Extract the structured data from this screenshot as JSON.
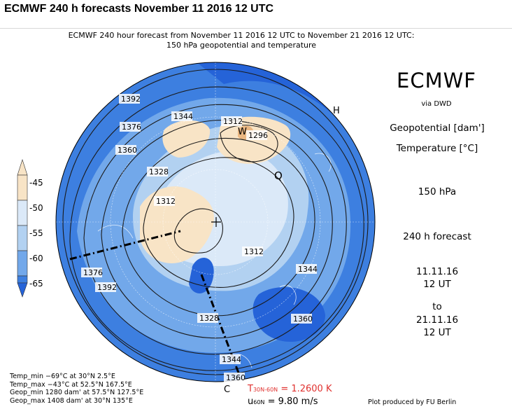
{
  "page": {
    "title": "ECMWF 240 h forecasts November 11 2016 12 UTC"
  },
  "map": {
    "title_line1": "ECMWF 240 hour forecast from November 11 2016 12 UTC to November 21 2016 12 UTC:",
    "title_line2": "150 hPa geopotential and temperature",
    "contour_labels": [
      "1392",
      "1376",
      "1360",
      "1344",
      "1328",
      "1312",
      "1296",
      "1312",
      "1312",
      "1376",
      "1392",
      "1344",
      "1360",
      "1328",
      "1344",
      "1360"
    ],
    "markers": {
      "warm": "W",
      "cold": "C",
      "high": "H"
    }
  },
  "right_panel": {
    "brand": "ECMWF",
    "via": "via DWD",
    "geopotential": "Geopotential [dam']",
    "temperature": "Temperature [°C]",
    "level": "150 hPa",
    "forecast": "240 h forecast",
    "from_date": "11.11.16",
    "from_time": "12 UT",
    "to": "to",
    "to_date": "21.11.16",
    "to_time": "12 UT"
  },
  "colorbar": {
    "ticks": [
      "-45",
      "-50",
      "-55",
      "-60",
      "-65"
    ],
    "colors": [
      "#f8e4c6",
      "#dbe9f8",
      "#b2d1f1",
      "#72a8ea",
      "#3d7fe0",
      "#2563d8"
    ]
  },
  "stats": [
    "Temp_min −69°C at 30°N 2.5°E",
    "Temp_max −43°C at 52.5°N 167.5°E",
    "Geop_min 1280 dam' at 57.5°N 127.5°E",
    "Geop_max 1408 dam' at 30°N 135°E"
  ],
  "footer": {
    "tdiff_label": "T",
    "tdiff_sub": "30N-60N",
    "tdiff_value": "= 1.2600 K",
    "wind_label": "u",
    "wind_sub": "60N",
    "wind_value": "= 9.80 m/s",
    "credit": "Plot produced by FU Berlin"
  }
}
